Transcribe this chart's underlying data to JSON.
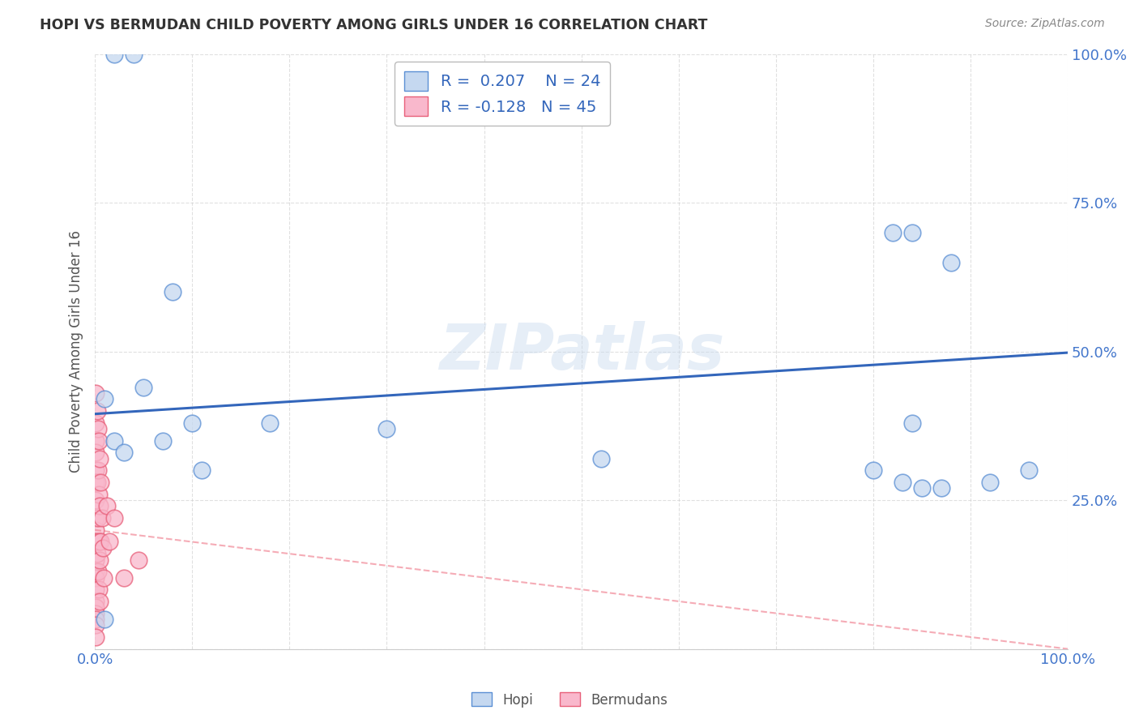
{
  "title": "HOPI VS BERMUDAN CHILD POVERTY AMONG GIRLS UNDER 16 CORRELATION CHART",
  "source": "Source: ZipAtlas.com",
  "ylabel": "Child Poverty Among Girls Under 16",
  "watermark": "ZIPatlas",
  "hopi_R": 0.207,
  "hopi_N": 24,
  "bermudans_R": -0.128,
  "bermudans_N": 45,
  "hopi_color": "#c5d8f0",
  "bermudans_color": "#f9b8cc",
  "hopi_edge_color": "#5b8fd4",
  "bermudans_edge_color": "#e8607a",
  "hopi_line_color": "#3366bb",
  "bermudans_line_color": "#f08090",
  "hopi_scatter_x": [
    0.02,
    0.04,
    0.05,
    0.07,
    0.08,
    0.1,
    0.11,
    0.18,
    0.3,
    0.52,
    0.8,
    0.82,
    0.83,
    0.84,
    0.84,
    0.85,
    0.87,
    0.88,
    0.92,
    0.96,
    0.01,
    0.02,
    0.01,
    0.03
  ],
  "hopi_scatter_y": [
    1.0,
    1.0,
    0.44,
    0.35,
    0.6,
    0.38,
    0.3,
    0.38,
    0.37,
    0.32,
    0.3,
    0.7,
    0.28,
    0.7,
    0.38,
    0.27,
    0.27,
    0.65,
    0.28,
    0.3,
    0.42,
    0.35,
    0.05,
    0.33
  ],
  "bermudans_scatter_x": [
    0.001,
    0.001,
    0.001,
    0.001,
    0.001,
    0.001,
    0.001,
    0.001,
    0.001,
    0.001,
    0.001,
    0.001,
    0.001,
    0.001,
    0.001,
    0.001,
    0.001,
    0.001,
    0.001,
    0.001,
    0.002,
    0.002,
    0.002,
    0.003,
    0.003,
    0.003,
    0.003,
    0.004,
    0.004,
    0.004,
    0.004,
    0.005,
    0.005,
    0.005,
    0.005,
    0.006,
    0.006,
    0.007,
    0.008,
    0.009,
    0.012,
    0.015,
    0.02,
    0.03,
    0.045
  ],
  "bermudans_scatter_y": [
    0.43,
    0.38,
    0.35,
    0.33,
    0.3,
    0.28,
    0.25,
    0.22,
    0.2,
    0.18,
    0.15,
    0.13,
    0.12,
    0.1,
    0.08,
    0.07,
    0.06,
    0.05,
    0.04,
    0.02,
    0.4,
    0.28,
    0.16,
    0.37,
    0.3,
    0.22,
    0.13,
    0.35,
    0.26,
    0.18,
    0.1,
    0.32,
    0.24,
    0.15,
    0.08,
    0.28,
    0.18,
    0.22,
    0.17,
    0.12,
    0.24,
    0.18,
    0.22,
    0.12,
    0.15
  ],
  "hopi_line_x": [
    0.0,
    1.0
  ],
  "hopi_line_y": [
    0.395,
    0.498
  ],
  "berm_line_x": [
    0.0,
    1.0
  ],
  "berm_line_y": [
    0.2,
    0.0
  ],
  "xlim": [
    0.0,
    1.0
  ],
  "ylim": [
    0.0,
    1.0
  ],
  "xtick_positions": [
    0.0,
    0.1,
    0.2,
    0.3,
    0.4,
    0.5,
    0.6,
    0.7,
    0.8,
    0.9,
    1.0
  ],
  "xticklabels": [
    "0.0%",
    "",
    "",
    "",
    "",
    "",
    "",
    "",
    "",
    "",
    "100.0%"
  ],
  "ytick_positions": [
    0.0,
    0.25,
    0.5,
    0.75,
    1.0
  ],
  "yticklabels": [
    "",
    "25.0%",
    "50.0%",
    "75.0%",
    "100.0%"
  ],
  "tick_color": "#4477cc",
  "background_color": "#ffffff",
  "grid_color": "#cccccc",
  "title_color": "#333333",
  "source_color": "#888888",
  "ylabel_color": "#555555",
  "legend_text_color": "#3366bb"
}
